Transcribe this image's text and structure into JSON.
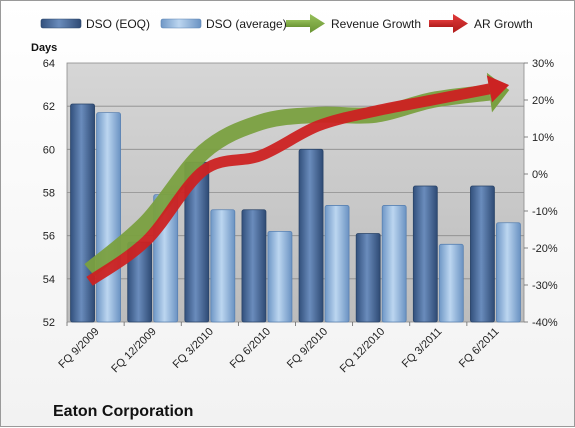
{
  "chart_data": {
    "type": "bar",
    "title": "Eaton Corporation",
    "ylabel": "Days",
    "categories": [
      "FQ 9/2009",
      "FQ 12/2009",
      "FQ 3/2010",
      "FQ 6/2010",
      "FQ 9/2010",
      "FQ 12/2010",
      "FQ 3/2011",
      "FQ 6/2011"
    ],
    "ylim": [
      52,
      64
    ],
    "y_ticks": [
      "52",
      "54",
      "56",
      "58",
      "60",
      "62",
      "64"
    ],
    "y2lim": [
      -40,
      30
    ],
    "y2_ticks": [
      "-40%",
      "-30%",
      "-20%",
      "-10%",
      "0%",
      "10%",
      "20%",
      "30%"
    ],
    "series": [
      {
        "name": "DSO (EOQ)",
        "kind": "bar",
        "color": "#4a6a9a",
        "values": [
          62.1,
          55.7,
          59.4,
          57.2,
          60.0,
          56.1,
          58.3,
          58.3
        ]
      },
      {
        "name": "DSO (average)",
        "kind": "bar",
        "color": "#8fb2d8",
        "values": [
          61.7,
          57.9,
          57.2,
          56.2,
          57.4,
          57.4,
          55.6,
          56.6
        ]
      },
      {
        "name": "Revenue Growth",
        "kind": "arrow",
        "axis": "right",
        "color": "#7aa040",
        "values": [
          -26,
          -13,
          6,
          14,
          16,
          16,
          20,
          22
        ]
      },
      {
        "name": "AR Growth",
        "kind": "arrow",
        "axis": "right",
        "color": "#cc2222",
        "values": [
          -29,
          -18,
          1,
          5,
          13,
          17,
          20,
          23
        ]
      }
    ],
    "legend": "top",
    "grid": true
  }
}
